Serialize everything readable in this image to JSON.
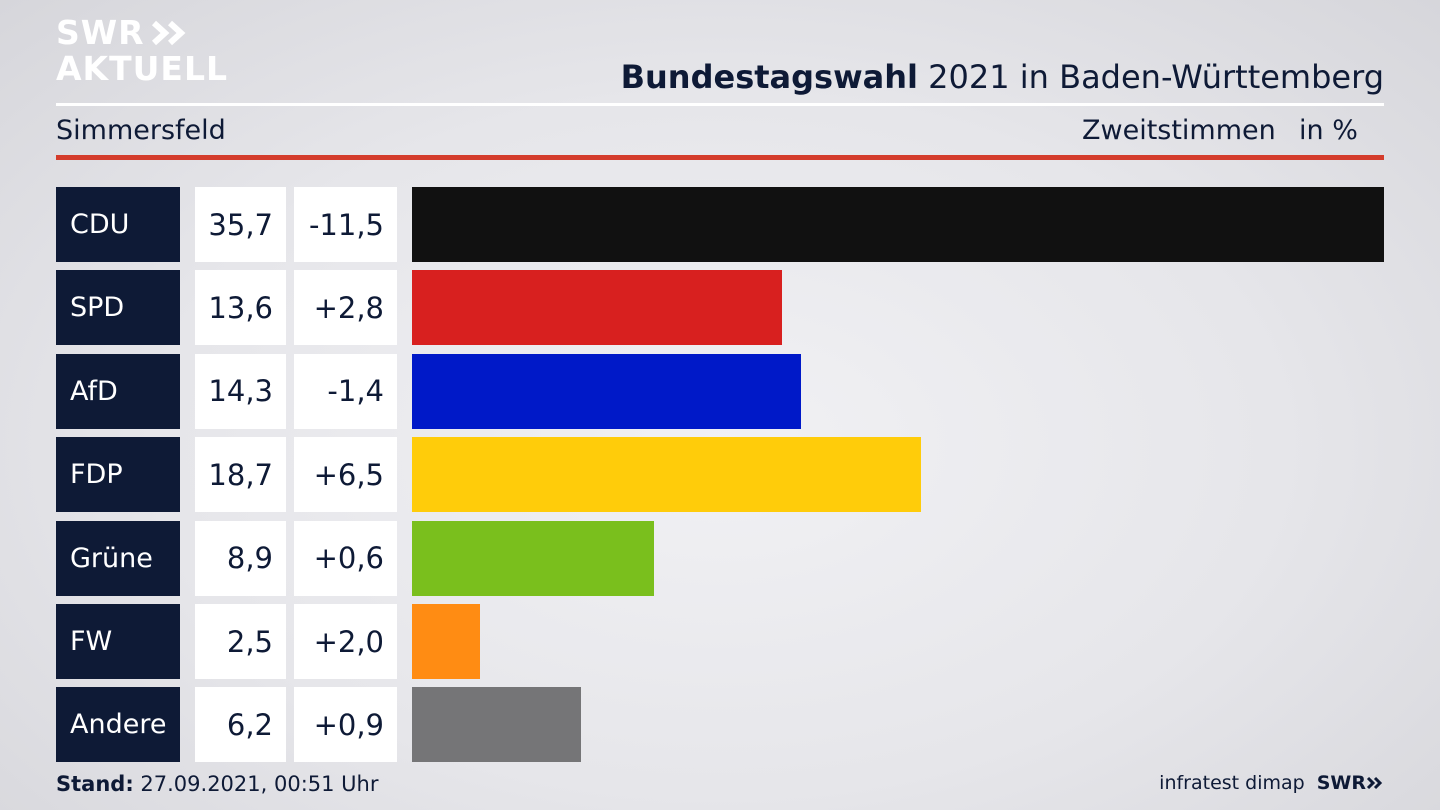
{
  "logo": {
    "line1": "SWR",
    "line2": "AKTUELL"
  },
  "header": {
    "title_bold": "Bundestagswahl",
    "title_rest": " 2021 in Baden-Württemberg",
    "location": "Simmersfeld",
    "measure": "Zweitstimmen",
    "unit": "in %"
  },
  "chart_data": {
    "type": "bar",
    "categories": [
      "CDU",
      "SPD",
      "AfD",
      "FDP",
      "Grüne",
      "FW",
      "Andere"
    ],
    "values": [
      35.7,
      13.6,
      14.3,
      18.7,
      8.9,
      2.5,
      6.2
    ],
    "values_label": [
      "35,7",
      "13,6",
      "14,3",
      "18,7",
      "8,9",
      "2,5",
      "6,2"
    ],
    "changes": [
      "-11,5",
      "+2,8",
      "-1,4",
      "+6,5",
      "+0,6",
      "+2,0",
      "+0,9"
    ],
    "colors": [
      "#111111",
      "#d8201f",
      "#0019c8",
      "#ffcc0a",
      "#7abf1d",
      "#ff8c13",
      "#757577"
    ],
    "orientation": "horizontal",
    "xlim": [
      0,
      35.7
    ]
  },
  "footer": {
    "stand_label": "Stand:",
    "stand_value": " 27.09.2021, 00:51 Uhr",
    "source": "infratest dimap",
    "brand": "SWR"
  }
}
